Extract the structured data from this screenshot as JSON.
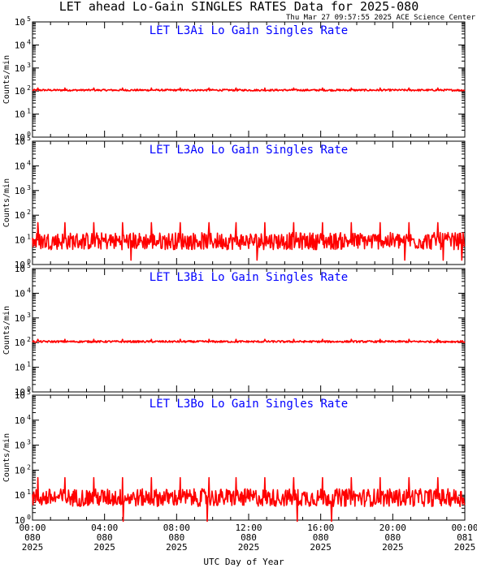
{
  "header": {
    "title": "LET ahead Lo-Gain SINGLES RATES Data for 2025-080",
    "timestamp": "Thu Mar 27 09:57:55 2025 ACE Science Center"
  },
  "colors": {
    "trace": "#ff0000",
    "panel_title": "#0000ff",
    "axes": "#000000",
    "background": "#ffffff"
  },
  "chart_data": [
    {
      "type": "line",
      "title": "LET L3Ai Lo Gain Singles Rate",
      "ylabel": "Counts/min",
      "yscale": "log",
      "ylim": [
        1,
        100000
      ],
      "xlim": [
        0,
        24
      ],
      "grid": false,
      "series": [
        {
          "baseline": 110,
          "noise_low": 100,
          "noise_high": 120,
          "spike_peak": 135
        }
      ]
    },
    {
      "type": "line",
      "title": "LET L3Ao Lo Gain Singles Rate",
      "ylabel": "Counts/min",
      "yscale": "log",
      "ylim": [
        1,
        100000
      ],
      "xlim": [
        0,
        24
      ],
      "grid": false,
      "series": [
        {
          "baseline": 9,
          "noise_low": 4,
          "noise_high": 20,
          "spike_peak": 50,
          "dip_low": 1.5
        }
      ]
    },
    {
      "type": "line",
      "title": "LET L3Bi Lo Gain Singles Rate",
      "ylabel": "Counts/min",
      "yscale": "log",
      "ylim": [
        1,
        100000
      ],
      "xlim": [
        0,
        24
      ],
      "grid": false,
      "series": [
        {
          "baseline": 110,
          "noise_low": 100,
          "noise_high": 120,
          "spike_peak": 135
        }
      ]
    },
    {
      "type": "line",
      "title": "LET L3Bo Lo Gain Singles Rate",
      "ylabel": "Counts/min",
      "yscale": "log",
      "ylim": [
        1,
        100000
      ],
      "xlim": [
        0,
        24
      ],
      "grid": false,
      "series": [
        {
          "baseline": 8,
          "noise_low": 3.5,
          "noise_high": 18,
          "spike_peak": 50,
          "dip_low": 0.8
        }
      ]
    }
  ],
  "x_axis": {
    "xlabel": "UTC Day of Year",
    "ticks": [
      {
        "time": "00:00",
        "doy": "080",
        "year": "2025"
      },
      {
        "time": "04:00",
        "doy": "080",
        "year": "2025"
      },
      {
        "time": "08:00",
        "doy": "080",
        "year": "2025"
      },
      {
        "time": "12:00",
        "doy": "080",
        "year": "2025"
      },
      {
        "time": "16:00",
        "doy": "080",
        "year": "2025"
      },
      {
        "time": "20:00",
        "doy": "080",
        "year": "2025"
      },
      {
        "time": "00:00",
        "doy": "081",
        "year": "2025"
      }
    ]
  },
  "y_ticks": [
    {
      "base": "10",
      "exp": "0",
      "value": 1
    },
    {
      "base": "10",
      "exp": "1",
      "value": 10
    },
    {
      "base": "10",
      "exp": "2",
      "value": 100
    },
    {
      "base": "10",
      "exp": "3",
      "value": 1000
    },
    {
      "base": "10",
      "exp": "4",
      "value": 10000
    },
    {
      "base": "10",
      "exp": "5",
      "value": 100000
    }
  ]
}
